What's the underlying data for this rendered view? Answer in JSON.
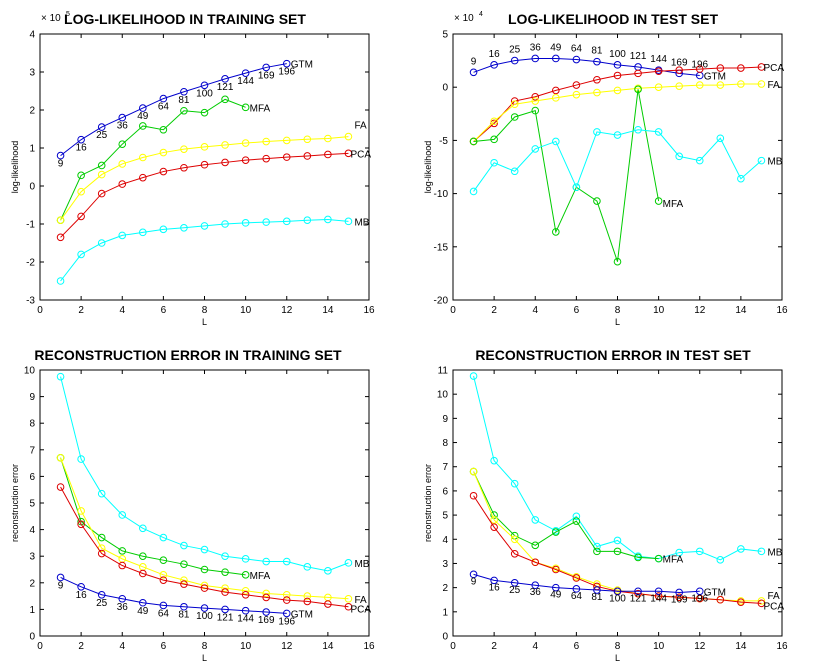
{
  "colors": {
    "GTM": "#0000cc",
    "PCA": "#dd0000",
    "FA": "#ffff00",
    "MFA": "#00cc00",
    "MB": "#00ffff"
  },
  "chart_data": [
    {
      "type": "line",
      "title": "LOG-LIKELIHOOD IN TRAINING SET",
      "xlabel": "L",
      "ylabel": "log-likelihood",
      "exponent": "× 10",
      "exponent_power": "5",
      "xlim": [
        0,
        16
      ],
      "ylim": [
        -3,
        4
      ],
      "xticks": [
        "0",
        "2",
        "4",
        "6",
        "8",
        "10",
        "12",
        "14",
        "16"
      ],
      "yticks": [
        "-3",
        "-2",
        "-1",
        "0",
        "1",
        "2",
        "3",
        "4"
      ],
      "series": [
        {
          "name": "GTM",
          "x": [
            1,
            2,
            3,
            4,
            5,
            6,
            7,
            8,
            9,
            10,
            11,
            12
          ],
          "y": [
            0.8,
            1.22,
            1.55,
            1.8,
            2.05,
            2.3,
            2.48,
            2.65,
            2.82,
            2.97,
            3.12,
            3.22
          ]
        },
        {
          "name": "MFA",
          "x": [
            1,
            2,
            3,
            4,
            5,
            6,
            7,
            8,
            9,
            10
          ],
          "y": [
            -0.9,
            0.28,
            0.54,
            1.1,
            1.58,
            1.48,
            1.98,
            1.93,
            2.28,
            2.07
          ]
        },
        {
          "name": "FA",
          "x": [
            1,
            2,
            3,
            4,
            5,
            6,
            7,
            8,
            9,
            10,
            11,
            12,
            13,
            14,
            15
          ],
          "y": [
            -0.9,
            -0.15,
            0.3,
            0.58,
            0.75,
            0.88,
            0.97,
            1.03,
            1.08,
            1.13,
            1.17,
            1.2,
            1.23,
            1.25,
            1.3
          ]
        },
        {
          "name": "PCA",
          "x": [
            1,
            2,
            3,
            4,
            5,
            6,
            7,
            8,
            9,
            10,
            11,
            12,
            13,
            14,
            15
          ],
          "y": [
            -1.35,
            -0.8,
            -0.2,
            0.05,
            0.22,
            0.38,
            0.48,
            0.56,
            0.62,
            0.68,
            0.72,
            0.76,
            0.79,
            0.83,
            0.86
          ]
        },
        {
          "name": "MB",
          "x": [
            1,
            2,
            3,
            4,
            5,
            6,
            7,
            8,
            9,
            10,
            11,
            12,
            13,
            14,
            15
          ],
          "y": [
            -2.5,
            -1.8,
            -1.5,
            -1.3,
            -1.22,
            -1.14,
            -1.1,
            -1.05,
            -1.0,
            -0.97,
            -0.95,
            -0.93,
            -0.9,
            -0.88,
            -0.93
          ]
        }
      ],
      "point_labels": {
        "series": "GTM",
        "labels": [
          "9",
          "16",
          "25",
          "36",
          "49",
          "64",
          "81",
          "100",
          "121",
          "144",
          "169",
          "196"
        ]
      }
    },
    {
      "type": "line",
      "title": "LOG-LIKELIHOOD IN TEST SET",
      "xlabel": "L",
      "ylabel": "log-likelihood",
      "exponent": "× 10",
      "exponent_power": "4",
      "xlim": [
        0,
        16
      ],
      "ylim": [
        -20,
        5
      ],
      "xticks": [
        "0",
        "2",
        "4",
        "6",
        "8",
        "10",
        "12",
        "14",
        "16"
      ],
      "yticks": [
        "-20",
        "-15",
        "-10",
        "-5",
        "0",
        "5"
      ],
      "series": [
        {
          "name": "GTM",
          "x": [
            1,
            2,
            3,
            4,
            5,
            6,
            7,
            8,
            9,
            10,
            11,
            12
          ],
          "y": [
            1.4,
            2.1,
            2.5,
            2.7,
            2.7,
            2.6,
            2.4,
            2.1,
            1.9,
            1.6,
            1.3,
            1.1
          ]
        },
        {
          "name": "PCA",
          "x": [
            1,
            2,
            3,
            4,
            5,
            6,
            7,
            8,
            9,
            10,
            11,
            12,
            13,
            14,
            15
          ],
          "y": [
            -5.1,
            -3.4,
            -1.3,
            -0.9,
            -0.3,
            0.2,
            0.7,
            1.1,
            1.3,
            1.5,
            1.6,
            1.7,
            1.8,
            1.8,
            1.9
          ]
        },
        {
          "name": "FA",
          "x": [
            1,
            2,
            3,
            4,
            5,
            6,
            7,
            8,
            9,
            10,
            11,
            12,
            13,
            14,
            15
          ],
          "y": [
            -5.1,
            -3.2,
            -1.6,
            -1.3,
            -1.0,
            -0.7,
            -0.5,
            -0.3,
            -0.1,
            0.0,
            0.1,
            0.2,
            0.2,
            0.3,
            0.3
          ]
        },
        {
          "name": "MFA",
          "x": [
            1,
            2,
            3,
            4,
            5,
            6,
            7,
            8,
            9,
            10
          ],
          "y": [
            -5.1,
            -4.9,
            -2.8,
            -2.2,
            -13.6,
            -9.4,
            -10.7,
            -16.4,
            -0.2,
            -10.7
          ]
        },
        {
          "name": "MB",
          "x": [
            1,
            2,
            3,
            4,
            5,
            6,
            7,
            8,
            9,
            10,
            11,
            12,
            13,
            14,
            15
          ],
          "y": [
            -9.8,
            -7.1,
            -7.9,
            -5.8,
            -5.1,
            -9.4,
            -4.2,
            -4.5,
            -4.0,
            -4.2,
            -6.5,
            -6.9,
            -4.8,
            -8.6,
            -6.9
          ]
        }
      ],
      "point_labels": {
        "series": "GTM",
        "labels": [
          "9",
          "16",
          "25",
          "36",
          "49",
          "64",
          "81",
          "100",
          "121",
          "144",
          "169",
          "196"
        ]
      }
    },
    {
      "type": "line",
      "title": "RECONSTRUCTION ERROR IN TRAINING SET",
      "xlabel": "L",
      "ylabel": "reconstruction error",
      "xlim": [
        0,
        16
      ],
      "ylim": [
        0,
        10
      ],
      "xticks": [
        "0",
        "2",
        "4",
        "6",
        "8",
        "10",
        "12",
        "14",
        "16"
      ],
      "yticks": [
        "0",
        "1",
        "2",
        "3",
        "4",
        "5",
        "6",
        "7",
        "8",
        "9",
        "10"
      ],
      "series": [
        {
          "name": "MB",
          "x": [
            1,
            2,
            3,
            4,
            5,
            6,
            7,
            8,
            9,
            10,
            11,
            12,
            13,
            14,
            15
          ],
          "y": [
            9.75,
            6.65,
            5.35,
            4.55,
            4.05,
            3.7,
            3.4,
            3.25,
            3.0,
            2.9,
            2.8,
            2.8,
            2.6,
            2.45,
            2.75
          ]
        },
        {
          "name": "MFA",
          "x": [
            1,
            2,
            3,
            4,
            5,
            6,
            7,
            8,
            9,
            10
          ],
          "y": [
            6.7,
            4.3,
            3.7,
            3.2,
            3.0,
            2.85,
            2.7,
            2.5,
            2.4,
            2.3
          ]
        },
        {
          "name": "FA",
          "x": [
            1,
            2,
            3,
            4,
            5,
            6,
            7,
            8,
            9,
            10,
            11,
            12,
            13,
            14,
            15
          ],
          "y": [
            6.7,
            4.7,
            3.3,
            2.9,
            2.6,
            2.3,
            2.1,
            1.9,
            1.8,
            1.7,
            1.6,
            1.55,
            1.5,
            1.45,
            1.4
          ]
        },
        {
          "name": "PCA",
          "x": [
            1,
            2,
            3,
            4,
            5,
            6,
            7,
            8,
            9,
            10,
            11,
            12,
            13,
            14,
            15
          ],
          "y": [
            5.6,
            4.2,
            3.1,
            2.65,
            2.35,
            2.1,
            1.95,
            1.8,
            1.65,
            1.55,
            1.45,
            1.35,
            1.3,
            1.2,
            1.1
          ]
        },
        {
          "name": "GTM",
          "x": [
            1,
            2,
            3,
            4,
            5,
            6,
            7,
            8,
            9,
            10,
            11,
            12
          ],
          "y": [
            2.2,
            1.85,
            1.55,
            1.4,
            1.25,
            1.15,
            1.1,
            1.05,
            1.0,
            0.95,
            0.9,
            0.85
          ]
        }
      ],
      "point_labels": {
        "series": "GTM",
        "labels": [
          "9",
          "16",
          "25",
          "36",
          "49",
          "64",
          "81",
          "100",
          "121",
          "144",
          "169",
          "196"
        ]
      }
    },
    {
      "type": "line",
      "title": "RECONSTRUCTION ERROR IN TEST SET",
      "xlabel": "L",
      "ylabel": "reconstruction error",
      "xlim": [
        0,
        16
      ],
      "ylim": [
        0,
        11
      ],
      "xticks": [
        "0",
        "2",
        "4",
        "6",
        "8",
        "10",
        "12",
        "14",
        "16"
      ],
      "yticks": [
        "0",
        "1",
        "2",
        "3",
        "4",
        "5",
        "6",
        "7",
        "8",
        "9",
        "10",
        "11"
      ],
      "series": [
        {
          "name": "MB",
          "x": [
            1,
            2,
            3,
            4,
            5,
            6,
            7,
            8,
            9,
            10,
            11,
            12,
            13,
            14,
            15
          ],
          "y": [
            10.75,
            7.25,
            6.3,
            4.8,
            4.35,
            4.95,
            3.7,
            3.95,
            3.3,
            3.2,
            3.45,
            3.5,
            3.15,
            3.6,
            3.5
          ]
        },
        {
          "name": "MFA",
          "x": [
            1,
            2,
            3,
            4,
            5,
            6,
            7,
            8,
            9,
            10
          ],
          "y": [
            6.8,
            5.0,
            4.15,
            3.75,
            4.3,
            4.75,
            3.5,
            3.5,
            3.25,
            3.2
          ]
        },
        {
          "name": "FA",
          "x": [
            1,
            2,
            3,
            4,
            5,
            6,
            7,
            8,
            9,
            10,
            11,
            12,
            13,
            14,
            15
          ],
          "y": [
            6.8,
            4.8,
            4.0,
            3.05,
            2.8,
            2.45,
            2.15,
            1.9,
            1.75,
            1.65,
            1.6,
            1.55,
            1.5,
            1.45,
            1.45
          ]
        },
        {
          "name": "PCA",
          "x": [
            1,
            2,
            3,
            4,
            5,
            6,
            7,
            8,
            9,
            10,
            11,
            12,
            13,
            14,
            15
          ],
          "y": [
            5.8,
            4.5,
            3.4,
            3.05,
            2.75,
            2.4,
            2.05,
            1.85,
            1.75,
            1.65,
            1.6,
            1.55,
            1.5,
            1.4,
            1.35
          ]
        },
        {
          "name": "GTM",
          "x": [
            1,
            2,
            3,
            4,
            5,
            6,
            7,
            8,
            9,
            10,
            11,
            12
          ],
          "y": [
            2.55,
            2.3,
            2.2,
            2.1,
            2.0,
            1.95,
            1.9,
            1.85,
            1.85,
            1.85,
            1.8,
            1.85
          ]
        }
      ],
      "point_labels": {
        "series": "GTM",
        "labels": [
          "9",
          "16",
          "25",
          "36",
          "49",
          "64",
          "81",
          "100",
          "121",
          "144",
          "169",
          "196"
        ]
      }
    }
  ]
}
